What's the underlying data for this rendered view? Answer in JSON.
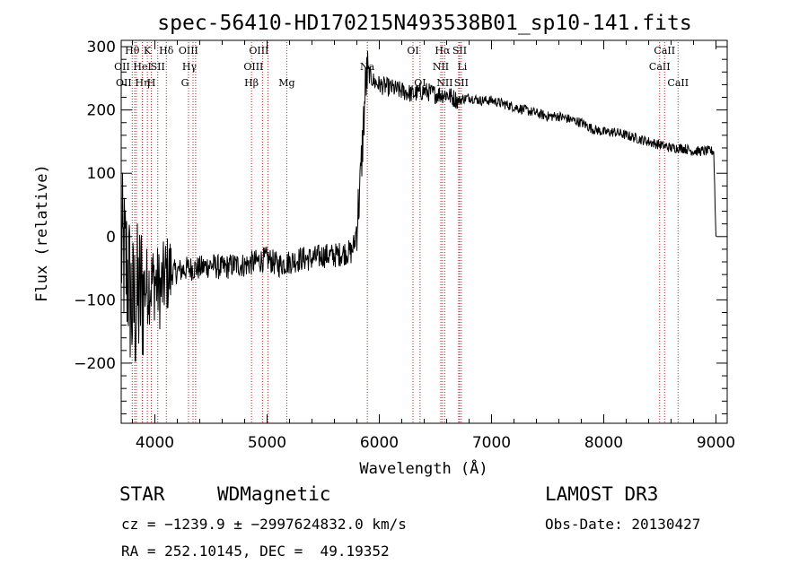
{
  "chart_data": {
    "type": "line",
    "title": "spec-56410-HD170215N493538B01_sp10-141.fits",
    "xlabel": "Wavelength (Å)",
    "ylabel": "Flux (relative)",
    "xlim": [
      3700,
      9100
    ],
    "ylim": [
      -295,
      310
    ],
    "xticks": [
      4000,
      5000,
      6000,
      7000,
      8000,
      9000
    ],
    "yticks": [
      -200,
      -100,
      0,
      100,
      200,
      300
    ],
    "grid": false,
    "series": [
      {
        "color": "#000000",
        "x": [
          3700,
          3760,
          3800,
          3850,
          3900,
          3950,
          4000,
          4050,
          4100,
          4200,
          4300,
          4400,
          4500,
          4600,
          4700,
          4800,
          4900,
          5000,
          5100,
          5200,
          5300,
          5400,
          5500,
          5600,
          5700,
          5750,
          5780,
          5800,
          5830,
          5860,
          5880,
          5900,
          5950,
          6000,
          6100,
          6200,
          6300,
          6400,
          6500,
          6600,
          6700,
          6800,
          6900,
          7000,
          7100,
          7200,
          7300,
          7400,
          7500,
          7600,
          7700,
          7800,
          7900,
          8000,
          8100,
          8200,
          8300,
          8400,
          8500,
          8600,
          8700,
          8800,
          8900,
          8980,
          9000
        ],
        "y": [
          -20,
          -60,
          -120,
          -100,
          -80,
          -75,
          -70,
          -85,
          -60,
          -55,
          -50,
          -50,
          -45,
          -50,
          -45,
          -45,
          -40,
          -35,
          -45,
          -40,
          -35,
          -35,
          -30,
          -30,
          -25,
          -25,
          -10,
          20,
          80,
          180,
          245,
          260,
          245,
          240,
          235,
          230,
          225,
          230,
          225,
          225,
          215,
          220,
          215,
          215,
          210,
          205,
          200,
          195,
          190,
          190,
          185,
          180,
          170,
          165,
          165,
          160,
          155,
          150,
          145,
          140,
          140,
          135,
          135,
          135,
          0
        ]
      }
    ],
    "lines": [
      {
        "x": 3798,
        "label": "Hθ",
        "row": 0,
        "dx": 0
      },
      {
        "x": 3820,
        "label": "OII",
        "row": 1,
        "dx": -14
      },
      {
        "x": 3835,
        "label": "OII",
        "row": 2,
        "dx": -14
      },
      {
        "x": 3889,
        "label": "Hη",
        "row": 2,
        "dx": 0
      },
      {
        "x": 3933,
        "label": "K",
        "row": 0,
        "dx": 0
      },
      {
        "x": 3889,
        "label": "HeI",
        "row": 1,
        "dx": 0
      },
      {
        "x": 3968,
        "label": "H",
        "row": 2,
        "dx": 0
      },
      {
        "x": 4026,
        "label": "SII",
        "row": 1,
        "dx": 0
      },
      {
        "x": 4102,
        "label": "Hδ",
        "row": 0,
        "dx": 0
      },
      {
        "x": 4300,
        "label": "G",
        "row": 2,
        "dx": -4
      },
      {
        "x": 4340,
        "label": "Hγ",
        "row": 1,
        "dx": -4
      },
      {
        "x": 4363,
        "label": "OIII",
        "row": 0,
        "dx": -8
      },
      {
        "x": 4861,
        "label": "Hβ",
        "row": 2,
        "dx": 0
      },
      {
        "x": 4959,
        "label": "OIII",
        "row": 1,
        "dx": -10
      },
      {
        "x": 5007,
        "label": "OIII",
        "row": 0,
        "dx": -10
      },
      {
        "x": 5175,
        "label": "Mg",
        "row": 2,
        "dx": 0
      },
      {
        "x": 5893,
        "label": "Na",
        "row": 1,
        "dx": 0
      },
      {
        "x": 6300,
        "label": "OI",
        "row": 0,
        "dx": 0
      },
      {
        "x": 6363,
        "label": "OI",
        "row": 2,
        "dx": 0
      },
      {
        "x": 6548,
        "label": "NII",
        "row": 1,
        "dx": 0
      },
      {
        "x": 6563,
        "label": "Hα",
        "row": 0,
        "dx": 0
      },
      {
        "x": 6583,
        "label": "NII",
        "row": 2,
        "dx": 0
      },
      {
        "x": 6707,
        "label": "Li",
        "row": 1,
        "dx": 4
      },
      {
        "x": 6716,
        "label": "SII",
        "row": 0,
        "dx": 0
      },
      {
        "x": 6731,
        "label": "SII",
        "row": 2,
        "dx": 0
      },
      {
        "x": 8498,
        "label": "CaII",
        "row": 1,
        "dx": 0
      },
      {
        "x": 8542,
        "label": "CaII",
        "row": 0,
        "dx": 0
      },
      {
        "x": 8662,
        "label": "CaII",
        "row": 2,
        "dx": 0
      }
    ],
    "line_color": "#b22222"
  },
  "footer": {
    "object_class": "STAR",
    "subclass": "WDMagnetic",
    "survey": "LAMOST DR3",
    "cz": "cz = −1239.9 ± −2997624832.0 km/s",
    "obs_date": "Obs-Date: 20130427",
    "radec": "RA = 252.10145, DEC =  49.19352"
  }
}
